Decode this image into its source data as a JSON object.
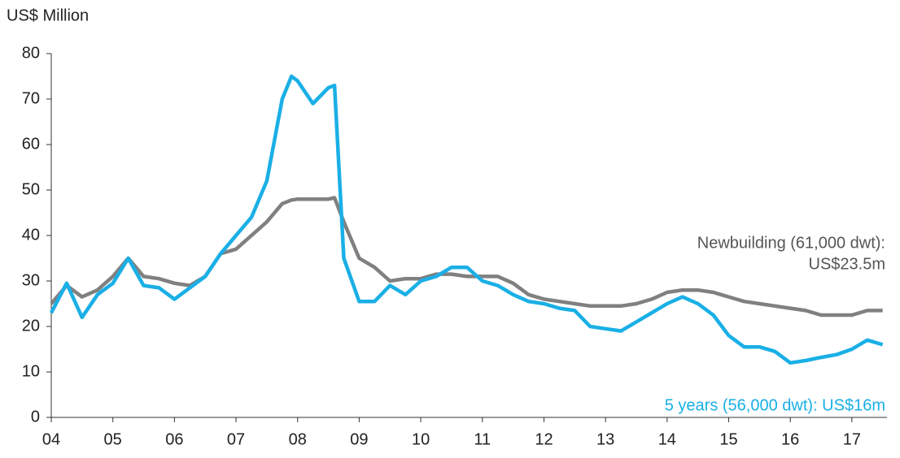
{
  "chart_data": {
    "type": "line",
    "y_label": "US$ Million",
    "x": [
      4,
      4.25,
      4.5,
      4.75,
      5,
      5.25,
      5.5,
      5.75,
      6,
      6.25,
      6.5,
      6.75,
      7,
      7.25,
      7.5,
      7.75,
      7.9,
      8,
      8.25,
      8.5,
      8.6,
      8.75,
      9,
      9.25,
      9.5,
      9.75,
      10,
      10.25,
      10.5,
      10.75,
      11,
      11.25,
      11.5,
      11.75,
      12,
      12.25,
      12.5,
      12.75,
      13,
      13.25,
      13.5,
      13.75,
      14,
      14.25,
      14.5,
      14.75,
      15,
      15.25,
      15.5,
      15.75,
      16,
      16.25,
      16.5,
      16.75,
      17,
      17.25,
      17.5
    ],
    "series": [
      {
        "color": "#1aafe6",
        "label": [
          "5 years (56,000 dwt): US$16m"
        ],
        "values": [
          23,
          29.5,
          22,
          27,
          29.5,
          35,
          29,
          28.5,
          26,
          28.5,
          31,
          36,
          40,
          44,
          52,
          70,
          75,
          74,
          69,
          72.5,
          73,
          35,
          25.5,
          25.5,
          29,
          27,
          30,
          31,
          33,
          33,
          30,
          29,
          27,
          25.5,
          25,
          24,
          23.5,
          20,
          19.5,
          19,
          21,
          23,
          25,
          26.5,
          25,
          22.5,
          18,
          15.5,
          15.5,
          14.5,
          12,
          12.5,
          13.2,
          13.8,
          15,
          17,
          16
        ]
      },
      {
        "color": "#808080",
        "label": [
          "Newbuilding (61,000 dwt):",
          "US$23.5m"
        ],
        "values": [
          25,
          29,
          26.5,
          28,
          31,
          35,
          31,
          30.5,
          29.5,
          29,
          31,
          36,
          37,
          40,
          43,
          47,
          47.8,
          48,
          48,
          48,
          48.3,
          43,
          35,
          33,
          30,
          30.5,
          30.5,
          31.5,
          31.5,
          31,
          31,
          31,
          29.5,
          27,
          26,
          25.5,
          25,
          24.5,
          24.5,
          24.5,
          25,
          26,
          27.5,
          28,
          28,
          27.5,
          26.5,
          25.5,
          25,
          24.5,
          24,
          23.5,
          22.5,
          22.5,
          22.5,
          23.5,
          23.5
        ]
      }
    ],
    "xlim": [
      4,
      17.57
    ],
    "xticks": [
      {
        "value": 4,
        "label": "04"
      },
      {
        "value": 5,
        "label": "05"
      },
      {
        "value": 6,
        "label": "06"
      },
      {
        "value": 7,
        "label": "07"
      },
      {
        "value": 8,
        "label": "08"
      },
      {
        "value": 9,
        "label": "09"
      },
      10,
      11,
      12,
      13,
      14,
      15,
      16,
      17
    ],
    "ylim": [
      0,
      80
    ],
    "yticks": [
      0,
      10,
      20,
      30,
      40,
      50,
      60,
      70,
      80
    ],
    "grid": false
  }
}
